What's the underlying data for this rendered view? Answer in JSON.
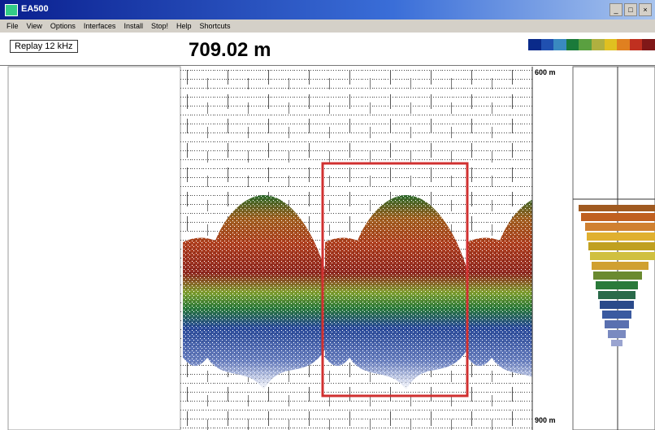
{
  "window": {
    "title": "EA500",
    "controls": [
      "_",
      "□",
      "×"
    ]
  },
  "menu": [
    "File",
    "View",
    "Options",
    "Interfaces",
    "Install",
    "Stop!",
    "Help",
    "Shortcuts"
  ],
  "toolbar": {
    "mode": "Replay 12 kHz",
    "depth": "709.02 m"
  },
  "echogram": {
    "top_label": "600 m",
    "bottom_label": "900 m"
  }
}
